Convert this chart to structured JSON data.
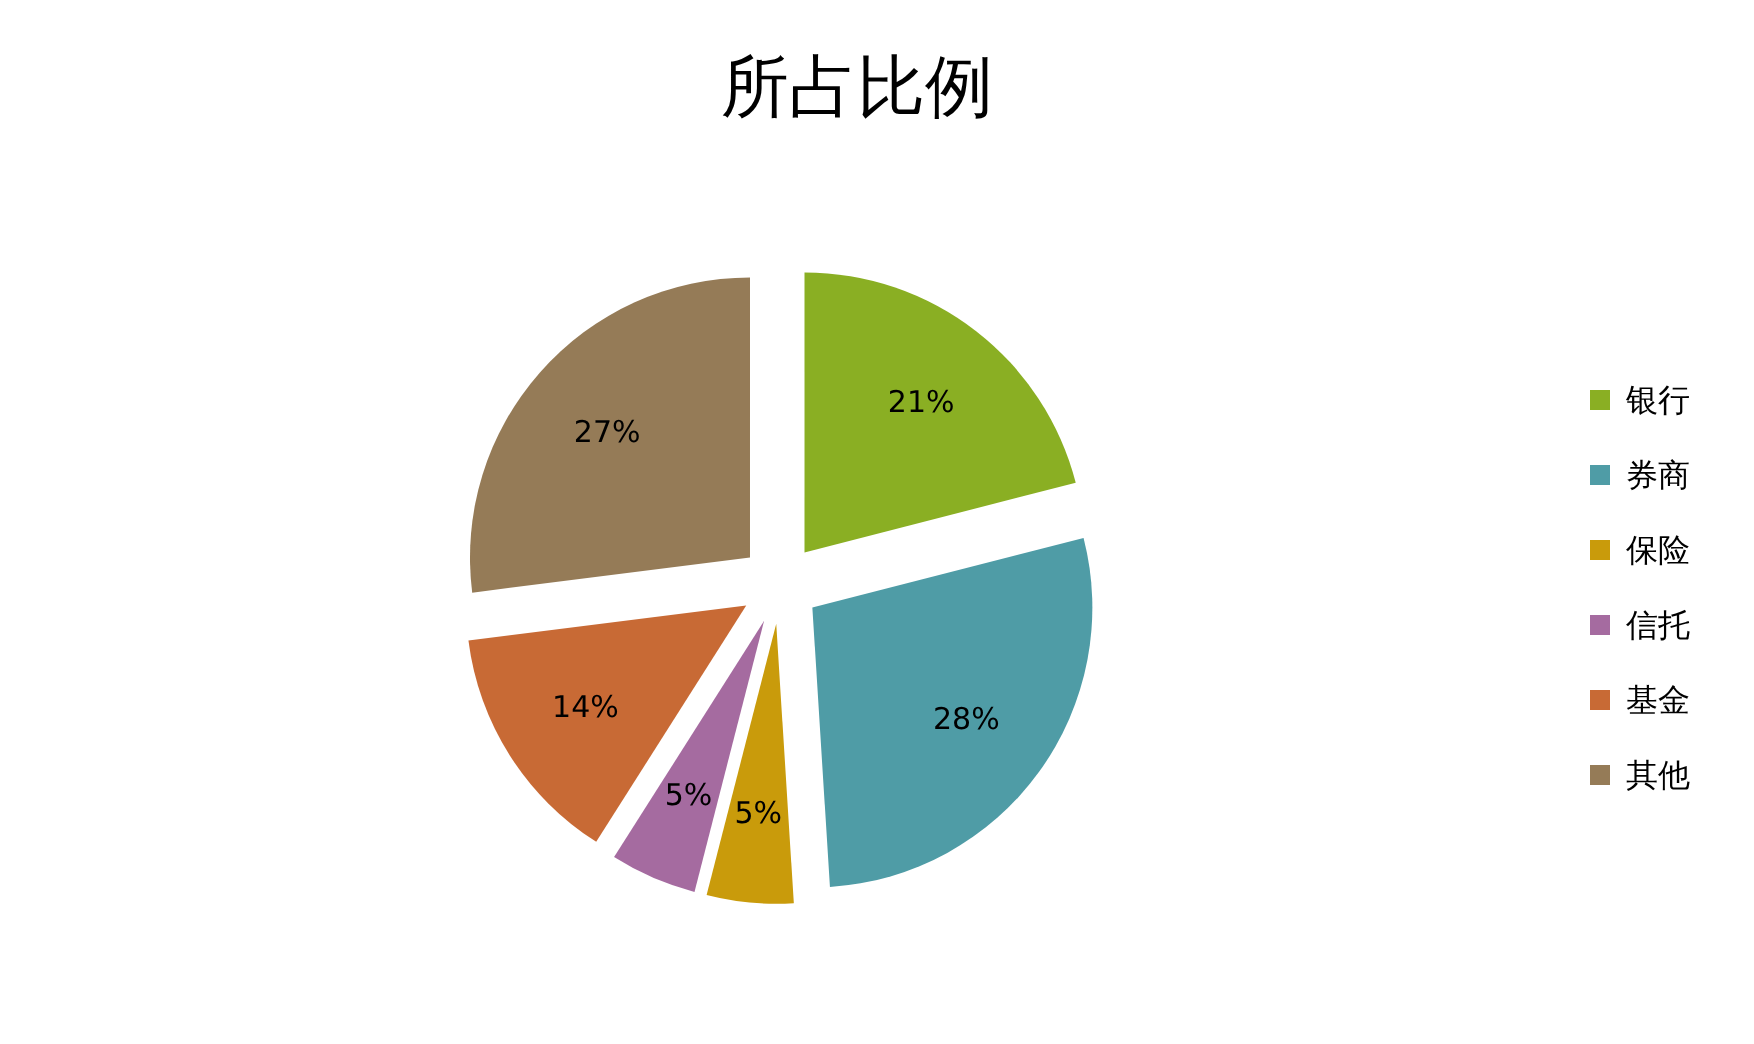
{
  "chart_data": {
    "type": "pie",
    "title": "所占比例",
    "categories": [
      "银行",
      "券商",
      "保险",
      "信托",
      "基金",
      "其他"
    ],
    "values": [
      21,
      28,
      5,
      5,
      14,
      27
    ],
    "colors": [
      "#8aaf23",
      "#4f9ca6",
      "#c99b0b",
      "#a56ba0",
      "#c86a35",
      "#957b57"
    ],
    "value_labels": [
      "21%",
      "28%",
      "5%",
      "5%",
      "14%",
      "27%"
    ],
    "legend": "right"
  }
}
